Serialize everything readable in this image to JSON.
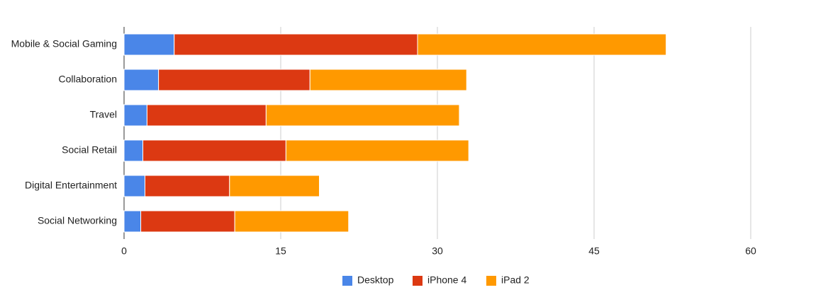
{
  "chart_data": {
    "type": "stacked-bar",
    "orientation": "horizontal",
    "categories": [
      "Mobile & Social Gaming",
      "Collaboration",
      "Travel",
      "Social Retail",
      "Digital Entertainment",
      "Social Networking"
    ],
    "series": [
      {
        "name": "Desktop",
        "color": "#4a86e8",
        "values": [
          4.8,
          3.3,
          2.2,
          1.8,
          2.0,
          1.6
        ]
      },
      {
        "name": "iPhone 4",
        "color": "#dc3912",
        "values": [
          23.3,
          14.5,
          11.4,
          13.7,
          8.1,
          9.0
        ]
      },
      {
        "name": "iPad 2",
        "color": "#ff9900",
        "values": [
          23.8,
          15.0,
          18.5,
          17.5,
          8.6,
          10.9
        ]
      }
    ],
    "xlim": [
      0,
      60
    ],
    "xticks": [
      0,
      15,
      30,
      45,
      60
    ],
    "grid": true,
    "legend": "bottom"
  }
}
